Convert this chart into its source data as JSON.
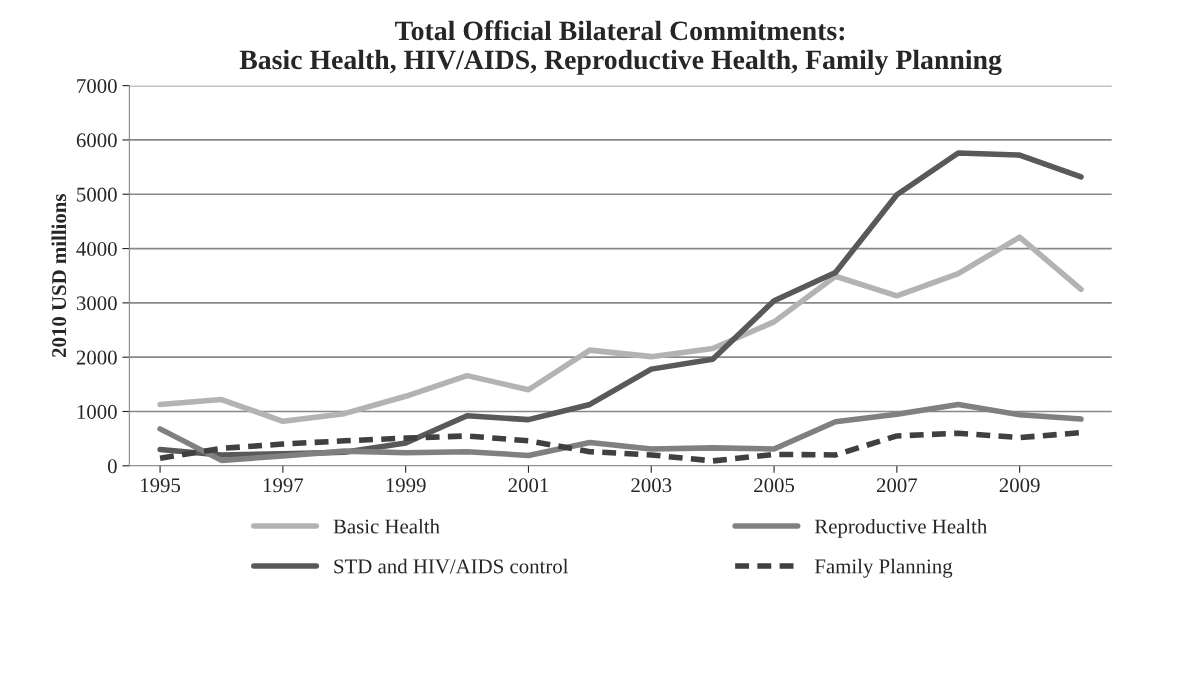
{
  "chart_data": {
    "type": "line",
    "title": "Total Official Bilateral Commitments:\nBasic Health, HIV/AIDS, Reproductive Health, Family Planning",
    "ylabel": "2010 USD millions",
    "x": [
      1995,
      1996,
      1997,
      1998,
      1999,
      2000,
      2001,
      2002,
      2003,
      2004,
      2005,
      2006,
      2007,
      2008,
      2009,
      2010
    ],
    "xlim": [
      1994.5,
      2010.5
    ],
    "xticks": [
      1995,
      1997,
      1999,
      2001,
      2003,
      2005,
      2007,
      2009
    ],
    "ylim": [
      0,
      7000
    ],
    "yticks": [
      0,
      1000,
      2000,
      3000,
      4000,
      5000,
      6000,
      7000
    ],
    "grid": "y",
    "legend": "bottom",
    "marker": "none",
    "series": [
      {
        "name": "Basic Health",
        "color": "#b3b3b3",
        "line_style": "solid",
        "values": [
          1130,
          1220,
          820,
          960,
          1280,
          1660,
          1400,
          2130,
          2010,
          2160,
          2650,
          3490,
          3130,
          3540,
          4210,
          3250
        ]
      },
      {
        "name": "STD and HIV/AIDS control",
        "color": "#595959",
        "line_style": "solid",
        "values": [
          300,
          200,
          220,
          250,
          420,
          920,
          850,
          1130,
          1780,
          1960,
          3040,
          3560,
          4990,
          5760,
          5720,
          5320
        ]
      },
      {
        "name": "Reproductive Health",
        "color": "#808080",
        "line_style": "solid",
        "values": [
          680,
          100,
          180,
          270,
          240,
          260,
          190,
          430,
          310,
          330,
          310,
          810,
          950,
          1130,
          940,
          860
        ]
      },
      {
        "name": "Family Planning",
        "color": "#404040",
        "line_style": "dashed",
        "values": [
          140,
          320,
          400,
          460,
          510,
          550,
          460,
          260,
          200,
          90,
          210,
          200,
          550,
          600,
          520,
          610
        ]
      }
    ]
  }
}
